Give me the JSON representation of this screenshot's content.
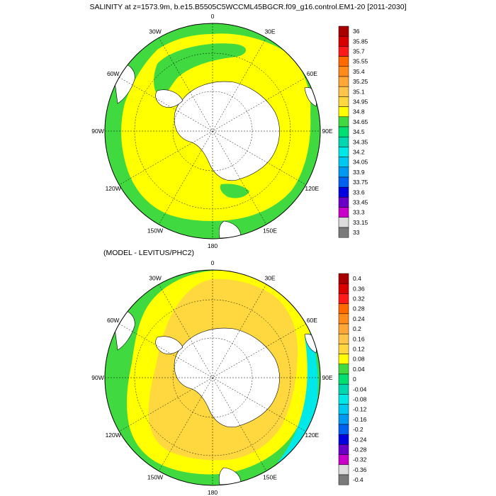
{
  "title": "SALINITY at z=1573.9m, b.e15.B5505C5WCCML45BGCR.f09_g16.control.EM1-20 [2011-2030]",
  "subtitle": "(MODEL - LEVITUS/PHC2)",
  "lon_labels": [
    "0",
    "30E",
    "60E",
    "90E",
    "120E",
    "150E",
    "180",
    "150W",
    "120W",
    "90W",
    "60W",
    "30W"
  ],
  "colorbars": [
    {
      "name": "salinity",
      "levels": [
        "36",
        "35.85",
        "35.7",
        "35.55",
        "35.4",
        "35.25",
        "35.1",
        "34.95",
        "34.8",
        "34.65",
        "34.5",
        "34.35",
        "34.2",
        "34.05",
        "33.9",
        "33.75",
        "33.6",
        "33.45",
        "33.3",
        "33.15",
        "33"
      ],
      "colors": [
        "#a80000",
        "#d90000",
        "#ff1a1a",
        "#ff6a00",
        "#ff8c1a",
        "#ffa838",
        "#ffc44a",
        "#ffd840",
        "#ffff00",
        "#40d940",
        "#00e070",
        "#00d7b0",
        "#00e8e8",
        "#00c8f0",
        "#0098f0",
        "#0060f0",
        "#0000e0",
        "#6a00c8",
        "#c800c8",
        "#dcdcdc",
        "#7a7a7a"
      ]
    },
    {
      "name": "difference",
      "levels": [
        "0.4",
        "0.36",
        "0.32",
        "0.28",
        "0.24",
        "0.2",
        "0.16",
        "0.12",
        "0.08",
        "0.04",
        "0",
        "-0.04",
        "-0.08",
        "-0.12",
        "-0.16",
        "-0.2",
        "-0.24",
        "-0.28",
        "-0.32",
        "-0.36",
        "-0.4"
      ],
      "colors": [
        "#a80000",
        "#d90000",
        "#ff1a1a",
        "#ff6a00",
        "#ff8c1a",
        "#ffa838",
        "#ffc44a",
        "#ffd840",
        "#ffff00",
        "#40d940",
        "#00e070",
        "#00d7b0",
        "#00e8e8",
        "#00c8f0",
        "#0098f0",
        "#0060f0",
        "#0000e0",
        "#6a00c8",
        "#c800c8",
        "#dcdcdc",
        "#7a7a7a"
      ]
    }
  ],
  "map_colors": {
    "p1_outer": "#40d940",
    "p1_main": "#ffff00",
    "p1_blob": "#40d940",
    "p2_outer": "#40d940",
    "p2_mid": "#ffff00",
    "p2_inner": "#ffd840",
    "p2_edge": "#00e8e8",
    "land": "#ffffff"
  }
}
